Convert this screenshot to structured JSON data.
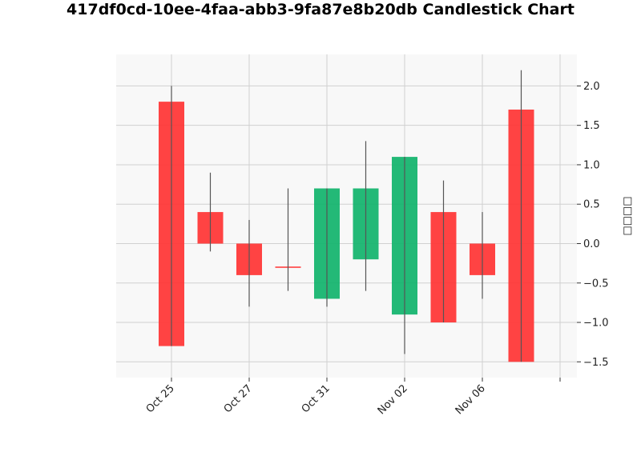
{
  "chart_data": {
    "type": "candlestick",
    "title": "417df0cd-10ee-4faa-abb3-9fa87e8b20db Candlestick Chart",
    "ylabel": "□□□□",
    "ylim": [
      -1.7,
      2.4
    ],
    "yticks": [
      -1.5,
      -1.0,
      -0.5,
      0.0,
      0.5,
      1.0,
      1.5,
      2.0
    ],
    "ytick_labels": [
      "−1.5",
      "−1.0",
      "−0.5",
      "0.0",
      "0.5",
      "1.0",
      "1.5",
      "2.0"
    ],
    "xtick_labels": [
      "Oct 25",
      "Oct 27",
      "Oct 31",
      "Nov 02",
      "Nov 06",
      ""
    ],
    "grid": true,
    "colors": {
      "up": "#10b36b",
      "down": "#ff3333",
      "wick": "#555555",
      "background": "#f8f8f8",
      "grid": "#d0d0d0"
    },
    "candles": [
      {
        "open": 1.8,
        "high": 2.0,
        "low": -1.3,
        "close": -1.3
      },
      {
        "open": 0.4,
        "high": 0.9,
        "low": -0.1,
        "close": 0.0
      },
      {
        "open": 0.0,
        "high": 0.3,
        "low": -0.8,
        "close": -0.4
      },
      {
        "open": -0.3,
        "high": 0.7,
        "low": -0.6,
        "close": -0.3
      },
      {
        "open": -0.7,
        "high": 0.7,
        "low": -0.8,
        "close": 0.7
      },
      {
        "open": -0.2,
        "high": 1.3,
        "low": -0.6,
        "close": 0.7
      },
      {
        "open": -0.9,
        "high": 1.1,
        "low": -1.4,
        "close": 1.1
      },
      {
        "open": 0.4,
        "high": 0.8,
        "low": -1.0,
        "close": -1.0
      },
      {
        "open": 0.0,
        "high": 0.4,
        "low": -0.7,
        "close": -0.4
      },
      {
        "open": 1.7,
        "high": 2.2,
        "low": -1.5,
        "close": -1.5
      }
    ]
  }
}
